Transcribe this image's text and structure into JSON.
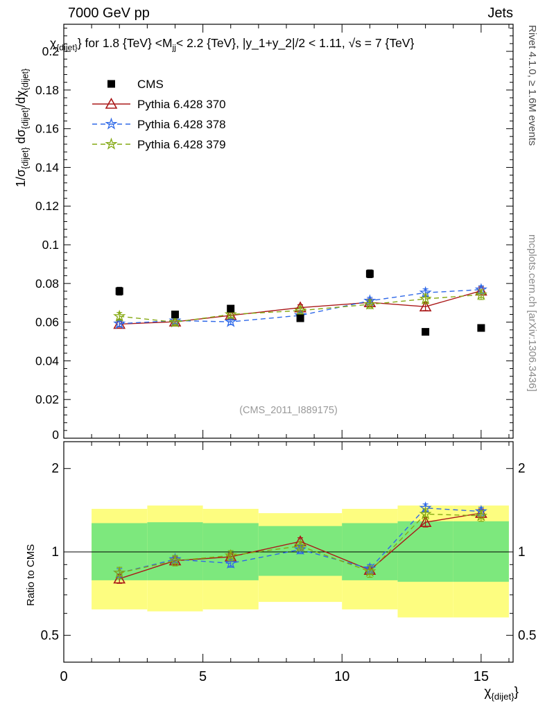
{
  "header": {
    "left": "7000 GeV pp",
    "right": "Jets"
  },
  "side_texts": {
    "rivet": "Rivet 4.1.0, ≥ 1.6M events",
    "mcplots": "mcplots.cern.ch [arXiv:1306.3436]"
  },
  "chart_data": {
    "type": "line",
    "title": "χ_{dijet}} for 1.8 {TeV} <M_jj< 2.2 {TeV}, |y_1+y_2|/2 < 1.11, √s = 7 {TeV}",
    "title_parts": {
      "p0": "χ",
      "s0": "{dijet}",
      "p1": "} for 1.8 {TeV} <M",
      "s1": "jj",
      "p2": "< 2.2 {TeV}, |y_1+y_2|/2 < 1.11, √s = 7 {TeV}"
    },
    "xlabel": "χ_{dijet}}",
    "xlabel_parts": {
      "p0": "χ",
      "s0": "{dijet}",
      "p1": "}"
    },
    "ylabel": "1/σ_{dijet} dσ_{dijet}/dχ_{dijet}",
    "ylabel_parts": {
      "p0": "1/σ",
      "s0": "{dijet}",
      "p1": " dσ",
      "s1": "{dijet}",
      "p2": "/dχ",
      "s2": "{dijet}"
    },
    "ratio_ylabel": "Ratio to CMS",
    "watermark": "(CMS_2011_I889175)",
    "legend_position": "top-left",
    "xlim": [
      0,
      16.15
    ],
    "xticks": [
      0,
      5,
      10,
      15
    ],
    "x_minor_step": 1,
    "x": [
      2,
      4,
      6,
      8.5,
      11,
      13,
      15
    ],
    "bin_edges": [
      1,
      3,
      5,
      7,
      10,
      12,
      14,
      16
    ],
    "main": {
      "ylim": [
        0,
        0.214
      ],
      "yticks": [
        0,
        0.02,
        0.04,
        0.06,
        0.08,
        0.1,
        0.12,
        0.14,
        0.16,
        0.18,
        0.2
      ],
      "y_minor_step": 0.004,
      "series": [
        {
          "name": "CMS",
          "marker": "square",
          "color": "#000000",
          "line": "none",
          "values": [
            0.076,
            0.064,
            0.067,
            0.062,
            0.085,
            0.055,
            0.057
          ],
          "errors": [
            0.002,
            0.0015,
            0.0015,
            0.0015,
            0.002,
            0.0015,
            0.0015
          ]
        },
        {
          "name": "Pythia 6.428 370",
          "marker": "triangle",
          "color": "#aa1818",
          "line": "solid",
          "values": [
            0.059,
            0.0602,
            0.0635,
            0.0675,
            0.0702,
            0.068,
            0.0762
          ],
          "errors": [
            0.0015,
            0.0015,
            0.0015,
            0.0015,
            0.0018,
            0.002,
            0.002
          ]
        },
        {
          "name": "Pythia 6.428 378",
          "marker": "star",
          "color": "#2e68e8",
          "line": "dashed",
          "values": [
            0.0592,
            0.0608,
            0.0602,
            0.0635,
            0.071,
            0.0752,
            0.0768
          ],
          "errors": [
            0.0015,
            0.0015,
            0.0015,
            0.0015,
            0.0018,
            0.002,
            0.002
          ]
        },
        {
          "name": "Pythia 6.428 379",
          "marker": "star",
          "color": "#84a811",
          "line": "dashed",
          "values": [
            0.063,
            0.06,
            0.064,
            0.066,
            0.0692,
            0.072,
            0.0742
          ],
          "errors": [
            0.002,
            0.002,
            0.002,
            0.002,
            0.0022,
            0.0025,
            0.0025
          ]
        }
      ]
    },
    "ratio": {
      "scale": "log",
      "ylim": [
        0.4,
        2.5
      ],
      "yticks": [
        0.5,
        1,
        2
      ],
      "yminors": [
        0.4,
        0.6,
        0.7,
        0.8,
        0.9
      ],
      "reference_line": 1,
      "bands": [
        {
          "name": "yellow-uncertainty-band",
          "color": "#fdfd80",
          "lo": [
            0.62,
            0.61,
            0.62,
            0.66,
            0.62,
            0.58,
            0.58
          ],
          "hi": [
            1.43,
            1.47,
            1.43,
            1.38,
            1.43,
            1.47,
            1.47
          ]
        },
        {
          "name": "green-uncertainty-band",
          "color": "#7de87d",
          "lo": [
            0.79,
            0.79,
            0.79,
            0.82,
            0.79,
            0.78,
            0.78
          ],
          "hi": [
            1.27,
            1.28,
            1.27,
            1.24,
            1.27,
            1.29,
            1.29
          ]
        }
      ],
      "series": [
        {
          "name": "Pythia 6.428 370",
          "marker": "triangle",
          "color": "#aa1818",
          "line": "solid",
          "values": [
            0.8,
            0.93,
            0.96,
            1.09,
            0.86,
            1.28,
            1.38
          ],
          "errors": [
            0.03,
            0.03,
            0.03,
            0.035,
            0.03,
            0.05,
            0.05
          ]
        },
        {
          "name": "Pythia 6.428 378",
          "marker": "star",
          "color": "#2e68e8",
          "line": "dashed",
          "values": [
            0.84,
            0.94,
            0.91,
            1.02,
            0.87,
            1.44,
            1.4
          ],
          "errors": [
            0.03,
            0.03,
            0.03,
            0.035,
            0.03,
            0.05,
            0.05
          ]
        },
        {
          "name": "Pythia 6.428 379",
          "marker": "star",
          "color": "#84a811",
          "line": "dashed",
          "values": [
            0.84,
            0.93,
            0.97,
            1.05,
            0.85,
            1.37,
            1.35
          ],
          "errors": [
            0.04,
            0.04,
            0.04,
            0.04,
            0.04,
            0.06,
            0.06
          ]
        }
      ]
    }
  }
}
